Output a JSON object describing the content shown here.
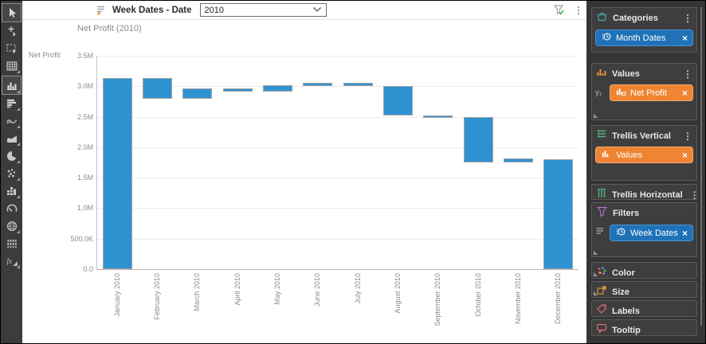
{
  "topbar": {
    "field_label": "Week Dates - Date",
    "dropdown_value": "2010"
  },
  "toolbar": {
    "tools": [
      {
        "name": "select-cursor",
        "active": true
      },
      {
        "name": "add-point-cursor",
        "active": false
      },
      {
        "name": "marquee-select",
        "active": false
      },
      {
        "name": "table-view",
        "active": false
      },
      {
        "name": "bar-chart-view",
        "active": true
      },
      {
        "name": "horizontal-bar-view",
        "active": false
      },
      {
        "name": "line-chart-view",
        "active": false
      },
      {
        "name": "area-chart-view",
        "active": false
      },
      {
        "name": "pie-chart-view",
        "active": false
      },
      {
        "name": "scatter-view",
        "active": false
      },
      {
        "name": "combo-chart-view",
        "active": false
      },
      {
        "name": "gauge-view",
        "active": false
      },
      {
        "name": "map-view",
        "active": false
      },
      {
        "name": "parallel-coords-view",
        "active": false
      },
      {
        "name": "function-view",
        "active": false
      }
    ]
  },
  "chart_data": {
    "type": "bar",
    "subtype": "waterfall",
    "title": "Net Profit (2010)",
    "ylabel": "Net Profit",
    "xlabel": "",
    "grid": true,
    "bar_color": "#2e92d1",
    "ylim": [
      0,
      3500000
    ],
    "yticks": [
      "3.5M",
      "3.0M",
      "2.5M",
      "2.0M",
      "1.5M",
      "1.0M",
      "500.0K",
      "0.0"
    ],
    "categories": [
      "January 2010",
      "February 2010",
      "March 2010",
      "April 2010",
      "May 2010",
      "June 2010",
      "July 2010",
      "August 2010",
      "September 2010",
      "October 2010",
      "November 2010",
      "December 2010"
    ],
    "series": [
      {
        "name": "Net Profit",
        "ranges_millions": [
          [
            0,
            3.14
          ],
          [
            2.8,
            3.14
          ],
          [
            2.8,
            2.97
          ],
          [
            2.91,
            2.97
          ],
          [
            2.91,
            3.02
          ],
          [
            3.01,
            3.05
          ],
          [
            3.01,
            3.05
          ],
          [
            2.52,
            3.01
          ],
          [
            2.48,
            2.52
          ],
          [
            1.75,
            2.49
          ],
          [
            1.75,
            1.82
          ],
          [
            0,
            1.8
          ]
        ]
      }
    ]
  },
  "panel": {
    "sections": [
      {
        "title": "Categories",
        "pill": {
          "label": "Month Dates",
          "color": "blue"
        }
      },
      {
        "title": "Values",
        "axis_label": "y₁",
        "pill": {
          "label": "Net Profit",
          "color": "orange"
        }
      },
      {
        "title": "Trellis Vertical",
        "pill": {
          "label": "Values",
          "color": "orange"
        }
      },
      {
        "title": "Trellis Horizontal"
      },
      {
        "title": "Filters",
        "pill": {
          "label": "Week Dates",
          "color": "blue"
        }
      },
      {
        "title": "Color"
      },
      {
        "title": "Size"
      },
      {
        "title": "Labels"
      },
      {
        "title": "Tooltip"
      }
    ],
    "colors": {
      "blue_pill": "#1f72b8",
      "orange_pill": "#ef8433"
    }
  },
  "icons": {
    "kebab": "⋮",
    "close": "×"
  }
}
